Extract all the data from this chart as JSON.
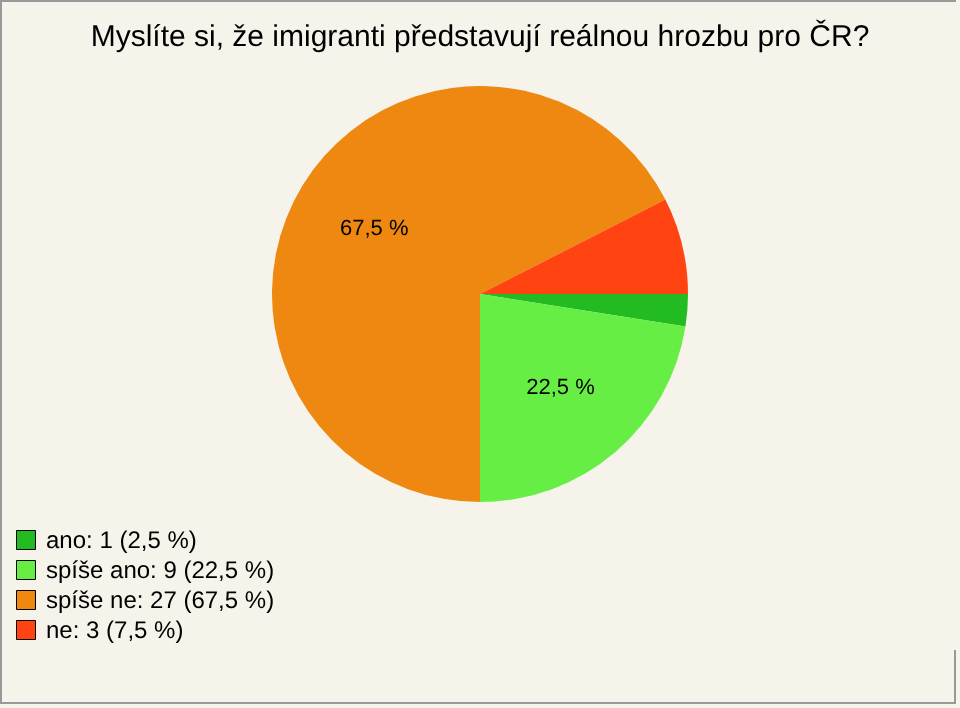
{
  "chart_data": {
    "type": "pie",
    "title": "Myslíte si, že imigranti představují reálnou hrozbu pro ČR?",
    "categories": [
      "ano: 1 (2,5 %)",
      "spíše ano: 9 (22,5 %)",
      "spíše ne: 27 (67,5 %)",
      "ne: 3 (7,5 %)"
    ],
    "values": [
      2.5,
      22.5,
      67.5,
      7.5
    ],
    "colors": [
      "#22bb22",
      "#66ee44",
      "#ee8811",
      "#ff4411"
    ],
    "value_labels": [
      null,
      "22,5 %",
      "67,5 %",
      null
    ],
    "legend": "bottom left"
  }
}
